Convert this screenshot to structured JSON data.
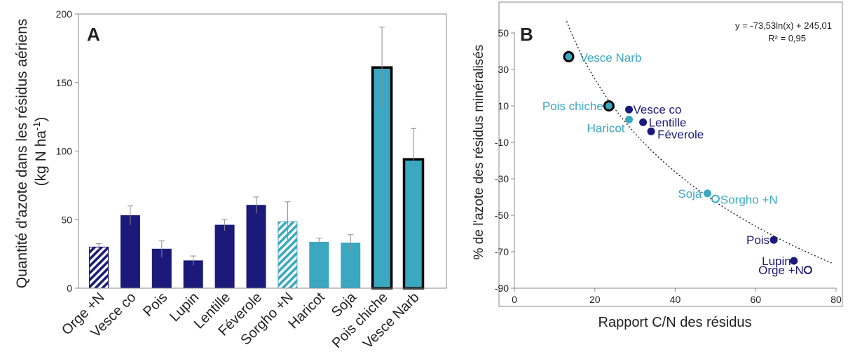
{
  "colors": {
    "dark_blue": "#1b1a7a",
    "light_blue": "#3aa8c1",
    "edge": "#000000"
  },
  "chart_data": [
    {
      "type": "bar",
      "panel_label": "A",
      "ylabel_line1": "Quantité d'azote dans les résidus aériens",
      "ylabel_line2": "(kg N ha",
      "ylabel_sup": "-1",
      "ylabel_end": ")",
      "ylim": [
        0,
        200
      ],
      "yticks": [
        0,
        50,
        100,
        150,
        200
      ],
      "grid": false,
      "bars": [
        {
          "category": "Orge +N",
          "value": 30,
          "error": 2.5,
          "color": "dark_blue",
          "hatched": true,
          "thick_border": false
        },
        {
          "category": "Vesce co",
          "value": 53,
          "error": 7,
          "color": "dark_blue",
          "hatched": false,
          "thick_border": false
        },
        {
          "category": "Pois",
          "value": 28.5,
          "error": 6,
          "color": "dark_blue",
          "hatched": false,
          "thick_border": false
        },
        {
          "category": "Lupin",
          "value": 20,
          "error": 3.5,
          "color": "dark_blue",
          "hatched": false,
          "thick_border": false
        },
        {
          "category": "Lentille",
          "value": 46,
          "error": 4,
          "color": "dark_blue",
          "hatched": false,
          "thick_border": false
        },
        {
          "category": "Féverole",
          "value": 60.5,
          "error": 6,
          "color": "dark_blue",
          "hatched": false,
          "thick_border": false
        },
        {
          "category": "Sorgho +N",
          "value": 48.5,
          "error": 14.5,
          "color": "light_blue",
          "hatched": true,
          "thick_border": false
        },
        {
          "category": "Haricot",
          "value": 33.5,
          "error": 3,
          "color": "light_blue",
          "hatched": false,
          "thick_border": false
        },
        {
          "category": "Soja",
          "value": 33,
          "error": 6,
          "color": "light_blue",
          "hatched": false,
          "thick_border": false
        },
        {
          "category": "Pois chiche",
          "value": 161,
          "error": 29.5,
          "color": "light_blue",
          "hatched": false,
          "thick_border": true
        },
        {
          "category": "Vesce Narb",
          "value": 94,
          "error": 22.5,
          "color": "light_blue",
          "hatched": false,
          "thick_border": true
        }
      ]
    },
    {
      "type": "scatter",
      "panel_label": "B",
      "xlabel": "Rapport C/N des résidus",
      "ylabel": "% de l'azote des résidus minéralisés",
      "xlim": [
        0,
        80
      ],
      "ylim": [
        -90,
        50
      ],
      "xticks": [
        0,
        20,
        40,
        60,
        80
      ],
      "yticks": [
        -90,
        -70,
        -50,
        -30,
        -10,
        10,
        30,
        50
      ],
      "grid": false,
      "equation": "y = -73,53ln(x) + 245,01",
      "r2": "R² = 0,95",
      "trend": {
        "type": "log",
        "a": -73.53,
        "b": 245.01,
        "x_from": 13,
        "x_to": 79
      },
      "points": [
        {
          "label": "Vesce Narb",
          "x": 13.5,
          "y": 37,
          "color": "light_blue",
          "style": "outlined"
        },
        {
          "label": "Pois chiche",
          "x": 23.5,
          "y": 10,
          "color": "light_blue",
          "style": "outlined"
        },
        {
          "label": "Haricot",
          "x": 28.5,
          "y": 2.5,
          "color": "light_blue",
          "style": "filled"
        },
        {
          "label": "Vesce co",
          "x": 28.5,
          "y": 8,
          "color": "dark_blue",
          "style": "filled"
        },
        {
          "label": "Lentille",
          "x": 32,
          "y": 1,
          "color": "dark_blue",
          "style": "filled"
        },
        {
          "label": "Féverole",
          "x": 34,
          "y": -4,
          "color": "dark_blue",
          "style": "filled"
        },
        {
          "label": "Soja",
          "x": 48,
          "y": -38,
          "color": "light_blue",
          "style": "filled"
        },
        {
          "label": "Sorgho +N",
          "x": 50,
          "y": -41,
          "color": "light_blue",
          "style": "open"
        },
        {
          "label": "Pois",
          "x": 64.5,
          "y": -63.5,
          "color": "dark_blue",
          "style": "filled"
        },
        {
          "label": "Lupin",
          "x": 69.5,
          "y": -75,
          "color": "dark_blue",
          "style": "filled"
        },
        {
          "label": "Orge +N",
          "x": 73,
          "y": -80,
          "color": "dark_blue",
          "style": "open"
        }
      ]
    }
  ]
}
